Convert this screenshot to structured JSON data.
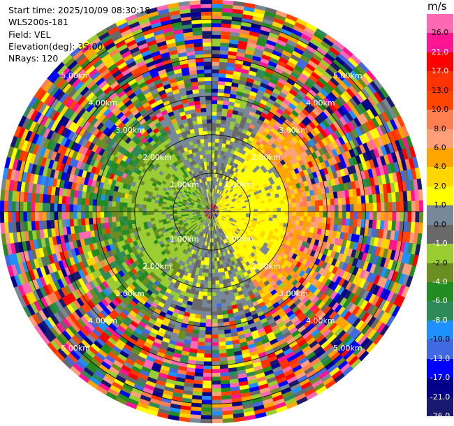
{
  "header": {
    "start_time": "Start time: 2025/10/09 08:30:18",
    "instrument": "WLS200s-181",
    "field": "Field: VEL",
    "elevation": "Elevation(deg): 35.00",
    "nrays": "NRays: 120"
  },
  "colorbar": {
    "unit": "m/s",
    "ticks": [
      "26.0",
      "21.0",
      "17.0",
      "13.0",
      "10.0",
      "8.0",
      "6.0",
      "4.0",
      "2.0",
      "1.0",
      "0.0",
      "-1.0",
      "-2.0",
      "-4.0",
      "-6.0",
      "-8.0",
      "-10.0",
      "-13.0",
      "-17.0",
      "-21.0",
      "-26.0",
      "-30.0"
    ],
    "colors": [
      "#ff69b4",
      "#ff1493",
      "#ff0000",
      "#ff3300",
      "#ff4500",
      "#ff7f50",
      "#ffa07a",
      "#ffa500",
      "#ffd700",
      "#ffff00",
      "#778899",
      "#696969",
      "#9acd32",
      "#6b8e23",
      "#228b22",
      "#2e8b57",
      "#1e90ff",
      "#4169e1",
      "#0000ff",
      "#00008b",
      "#191970"
    ]
  },
  "chart_data": {
    "type": "ppi",
    "field": "VEL",
    "unit": "m/s",
    "nrays": 120,
    "elevation_deg": 35.0,
    "max_range_km": 5.5,
    "range_rings_km": [
      1.0,
      2.0,
      3.0,
      4.0,
      5.0
    ],
    "range_labels": [
      "1.00km",
      "2.00km",
      "3.00km",
      "4.00km",
      "5.00km"
    ],
    "label_angles_deg": [
      45,
      135,
      225,
      315
    ],
    "pattern": {
      "positive_sector_azimuth_deg": [
        30,
        150
      ],
      "positive_core_range_km": 2.0,
      "negative_sector_azimuth_deg": [
        210,
        330
      ],
      "negative_core_range_km": 2.2,
      "near_range_noise_km": 1.2
    }
  }
}
